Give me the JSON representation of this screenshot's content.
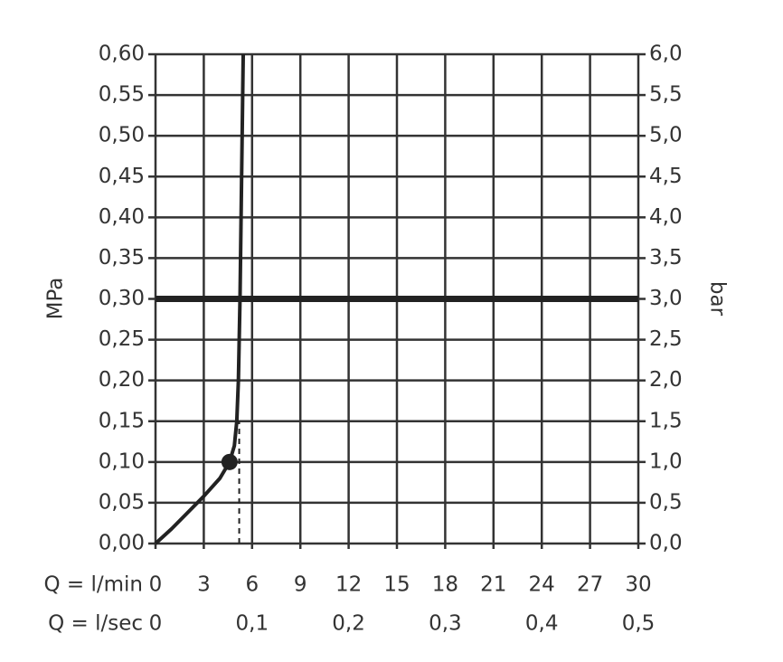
{
  "chart_data": {
    "type": "line",
    "y_label": "MPa",
    "y2_label": "bar",
    "x_label": "Q = l/min",
    "x2_label": "Q = l/sec",
    "series": [
      {
        "name": null,
        "color": "#222222",
        "x": [
          0,
          1,
          2,
          3,
          4,
          4.6,
          4.9,
          5.05,
          5.15,
          5.25,
          5.35,
          5.45
        ],
        "values": [
          0,
          0.018,
          0.038,
          0.058,
          0.08,
          0.1,
          0.12,
          0.15,
          0.2,
          0.3,
          0.45,
          0.6
        ]
      }
    ],
    "marker": {
      "x": 4.6,
      "y": 0.1
    },
    "drop_line": {
      "x": 5.2,
      "y": 0.15
    },
    "reference_line": 0.3,
    "xlim": [
      0,
      30
    ],
    "xticks": [
      0,
      3,
      6,
      9,
      12,
      15,
      18,
      21,
      24,
      27,
      30
    ],
    "x2lim": [
      0,
      0.5
    ],
    "x2ticks": [
      0,
      {
        "value": 0.1,
        "label": "0,1"
      },
      {
        "value": 0.2,
        "label": "0,2"
      },
      {
        "value": 0.3,
        "label": "0,3"
      },
      {
        "value": 0.4,
        "label": "0,4"
      },
      {
        "value": 0.5,
        "label": "0,5"
      }
    ],
    "ylim": [
      0,
      0.6
    ],
    "yticks": [
      {
        "value": 0,
        "label": "0,00"
      },
      {
        "value": 0.05,
        "label": "0,05"
      },
      {
        "value": 0.1,
        "label": "0,10"
      },
      {
        "value": 0.15,
        "label": "0,15"
      },
      {
        "value": 0.2,
        "label": "0,20"
      },
      {
        "value": 0.25,
        "label": "0,25"
      },
      {
        "value": 0.3,
        "label": "0,30"
      },
      {
        "value": 0.35,
        "label": "0,35"
      },
      {
        "value": 0.4,
        "label": "0,40"
      },
      {
        "value": 0.45,
        "label": "0,45"
      },
      {
        "value": 0.5,
        "label": "0,50"
      },
      {
        "value": 0.55,
        "label": "0,55"
      },
      {
        "value": 0.6,
        "label": "0,60"
      }
    ],
    "y2lim": [
      0,
      6
    ],
    "y2ticks": [
      {
        "value": 0,
        "label": "0,0"
      },
      {
        "value": 0.5,
        "label": "0,5"
      },
      {
        "value": 1,
        "label": "1,0"
      },
      {
        "value": 1.5,
        "label": "1,5"
      },
      {
        "value": 2,
        "label": "2,0"
      },
      {
        "value": 2.5,
        "label": "2,5"
      },
      {
        "value": 3,
        "label": "3,0"
      },
      {
        "value": 3.5,
        "label": "3,5"
      },
      {
        "value": 4,
        "label": "4,0"
      },
      {
        "value": 4.5,
        "label": "4,5"
      },
      {
        "value": 5,
        "label": "5,0"
      },
      {
        "value": 5.5,
        "label": "5,5"
      },
      {
        "value": 6,
        "label": "6,0"
      }
    ],
    "grid": true
  }
}
